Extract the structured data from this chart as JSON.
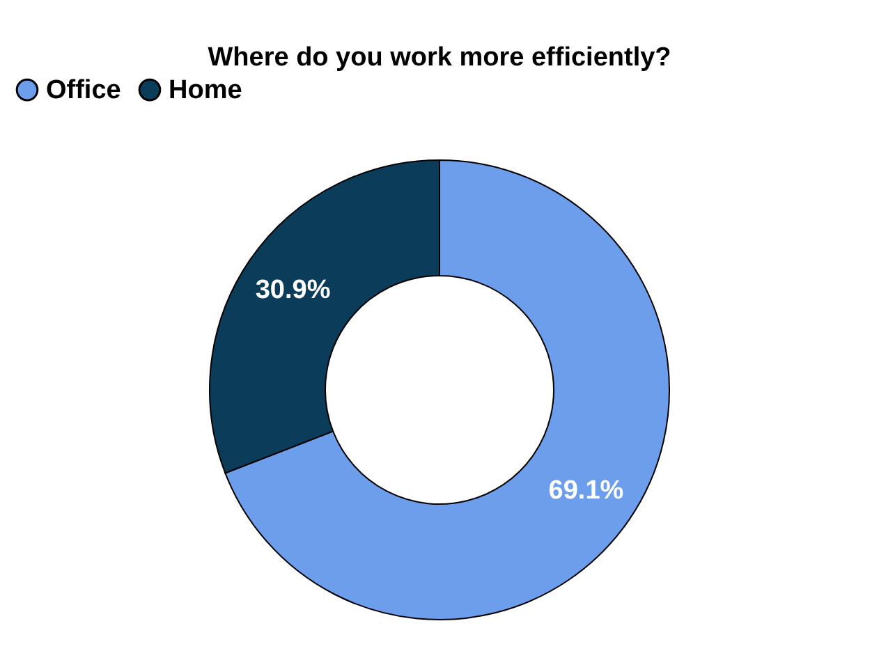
{
  "chart_data": {
    "type": "donut",
    "title": "Where do you work more efficiently?",
    "categories": [
      "Office",
      "Home"
    ],
    "values": [
      69.1,
      30.9
    ],
    "colors": [
      "#6d9eeb",
      "#0b3d5b"
    ],
    "value_labels": [
      "69.1%",
      "30.9%"
    ],
    "legend": "top"
  }
}
